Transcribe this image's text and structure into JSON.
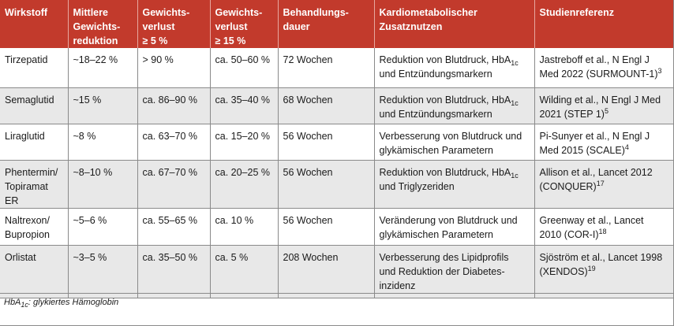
{
  "table": {
    "headers": {
      "c1": "Wirkstoff",
      "c2a": "Mittlere",
      "c2b": "Gewichts-",
      "c2c": "reduktion",
      "c3a": "Gewichts-",
      "c3b": "verlust",
      "c3c": "≥ 5 %",
      "c4a": "Gewichts-",
      "c4b": "verlust",
      "c4c": "≥ 15 %",
      "c5a": "Behandlungs-",
      "c5b": "dauer",
      "c6a": "Kardiometabolischer",
      "c6b": "Zusatznutzen",
      "c7": "Studienreferenz"
    },
    "rows": [
      {
        "wirkstoff_a": "Tirzepatid",
        "reduktion": "~18–22 %",
        "v5": "> 90 %",
        "v15": "ca. 50–60 %",
        "dauer": "72 Wochen",
        "nutzen_a": "Reduktion von Blutdruck, HbA",
        "nutzen_sub": "1c",
        "nutzen_b": "und Entzündungsmarkern",
        "ref_a": "Jastreboff et al., N Engl J",
        "ref_b": "Med 2022 (SURMOUNT-1)",
        "ref_sup": "3"
      },
      {
        "wirkstoff_a": "Semaglutid",
        "reduktion": "~15 %",
        "v5": "ca. 86–90 %",
        "v15": "ca. 35–40 %",
        "dauer": "68 Wochen",
        "nutzen_a": "Reduktion von Blutdruck, HbA",
        "nutzen_sub": "1c",
        "nutzen_b": "und Entzündungsmarkern",
        "ref_a": "Wilding et al., N Engl J Med",
        "ref_b": "2021 (STEP 1)",
        "ref_sup": "5"
      },
      {
        "wirkstoff_a": "Liraglutid",
        "reduktion": "~8 %",
        "v5": "ca. 63–70 %",
        "v15": "ca. 15–20 %",
        "dauer": "56 Wochen",
        "nutzen_a": "Verbesserung von Blutdruck und",
        "nutzen_b": "glykämischen Parametern",
        "ref_a": "Pi-Sunyer et al., N Engl J",
        "ref_b": "Med 2015 (SCALE)",
        "ref_sup": "4"
      },
      {
        "wirkstoff_a": "Phentermin/",
        "wirkstoff_b": "Topiramat ER",
        "reduktion": "~8–10 %",
        "v5": "ca. 67–70 %",
        "v15": "ca. 20–25 %",
        "dauer": "56 Wochen",
        "nutzen_a": "Reduktion von Blutdruck, HbA",
        "nutzen_sub": "1c",
        "nutzen_b": "und Triglyzeriden",
        "ref_a": "Allison et al., Lancet 2012",
        "ref_b": "(CONQUER)",
        "ref_sup": "17"
      },
      {
        "wirkstoff_a": "Naltrexon/",
        "wirkstoff_b": "Bupropion",
        "reduktion": "~5–6 %",
        "v5": "ca. 55–65 %",
        "v15": "ca. 10 %",
        "dauer": "56 Wochen",
        "nutzen_a": "Veränderung von Blutdruck und",
        "nutzen_b": "glykämischen Parametern",
        "ref_a": "Greenway et al., Lancet",
        "ref_b": "2010 (COR-I)",
        "ref_sup": "18"
      },
      {
        "wirkstoff_a": "Orlistat",
        "reduktion": "~3–5 %",
        "v5": "ca. 35–50 %",
        "v15": "ca. 5 %",
        "dauer": "208 Wochen",
        "nutzen_a": "Verbesserung des Lipidprofils",
        "nutzen_b": "und Reduktion der Diabetes-",
        "nutzen_c": "inzidenz",
        "ref_a": "Sjöström et al., Lancet 1998",
        "ref_b": "(XENDOS)",
        "ref_sup": "19"
      }
    ]
  },
  "footnote": {
    "abbr": "HbA",
    "abbr_sub": "1c",
    "text": ": glykiertes Hämoglobin"
  },
  "colors": {
    "header_bg": "#c23a2c",
    "header_text": "#ffffff",
    "alt_row_bg": "#e8e8e8"
  }
}
